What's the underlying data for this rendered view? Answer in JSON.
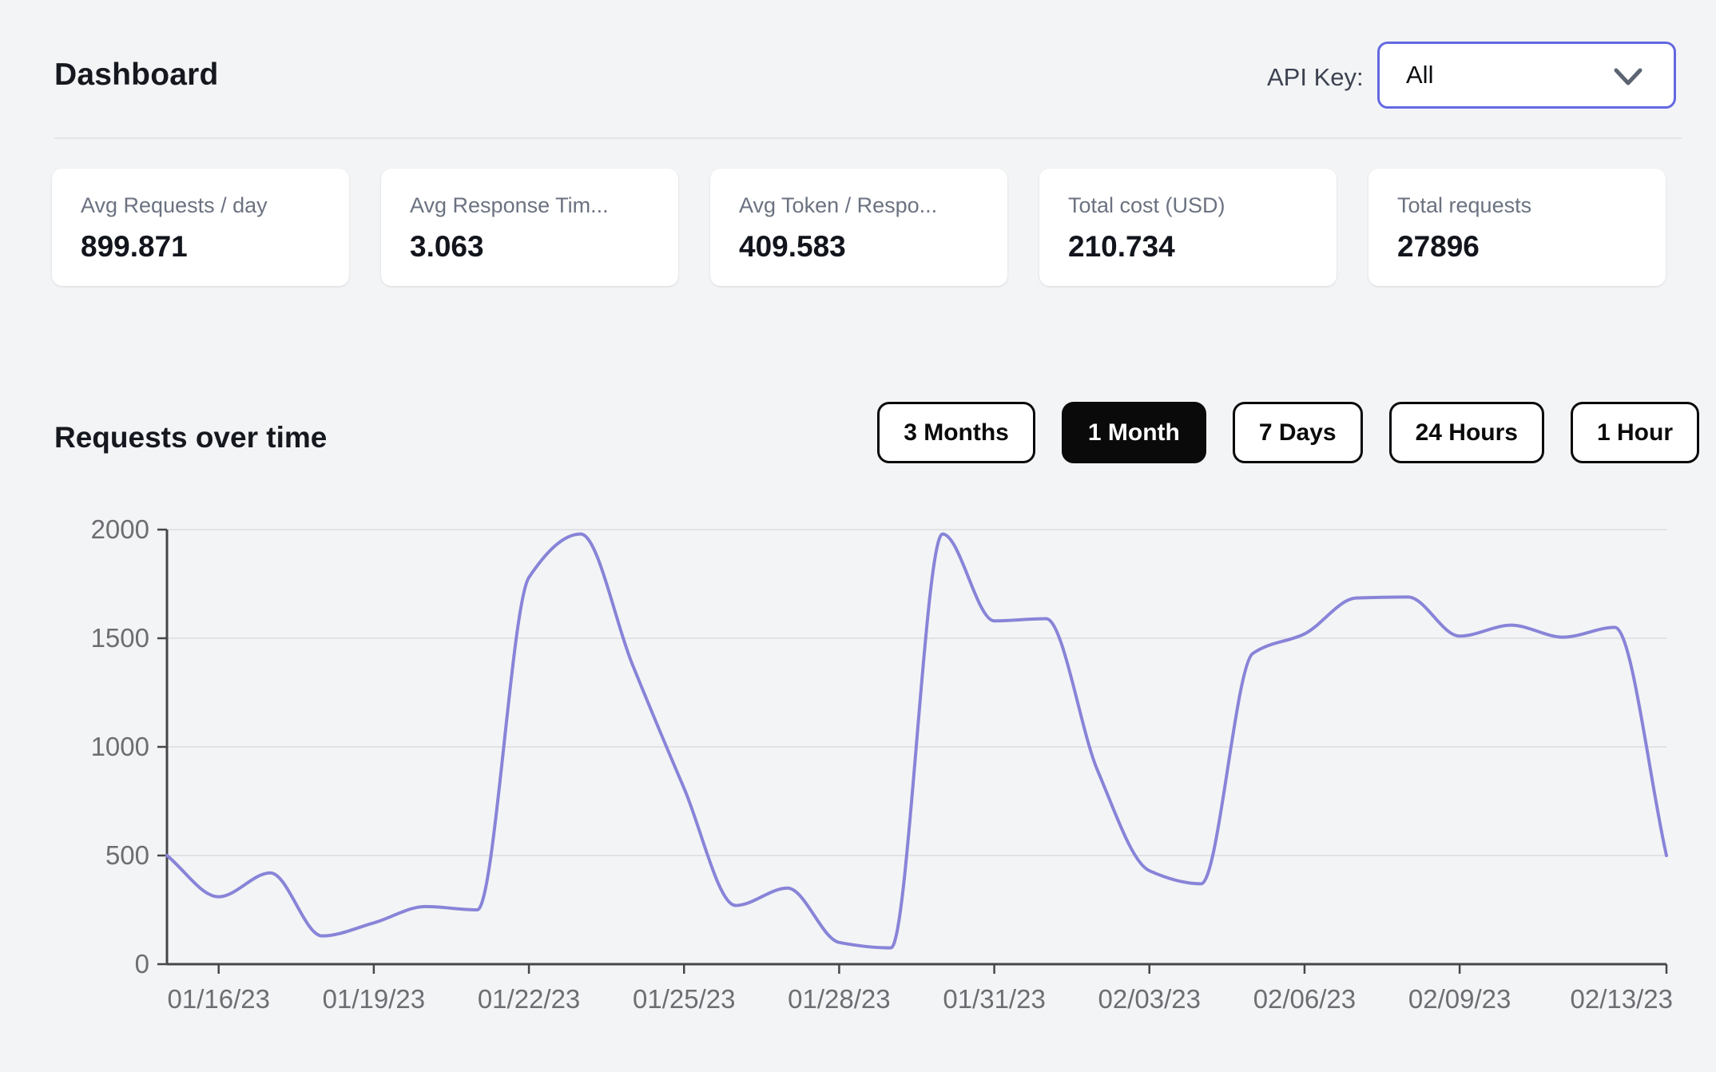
{
  "header": {
    "title": "Dashboard",
    "api_key_label": "API Key:",
    "api_key_value": "All"
  },
  "stats": [
    {
      "label": "Avg Requests / day",
      "value": "899.871"
    },
    {
      "label": "Avg Response Tim...",
      "value": "3.063"
    },
    {
      "label": "Avg Token / Respo...",
      "value": "409.583"
    },
    {
      "label": "Total cost (USD)",
      "value": "210.734"
    },
    {
      "label": "Total requests",
      "value": "27896"
    }
  ],
  "section": {
    "title": "Requests over time"
  },
  "range_buttons": [
    {
      "label": "3 Months",
      "active": false
    },
    {
      "label": "1 Month",
      "active": true
    },
    {
      "label": "7 Days",
      "active": false
    },
    {
      "label": "24 Hours",
      "active": false
    },
    {
      "label": "1 Hour",
      "active": false
    }
  ],
  "colors": {
    "page_background": "#f3f4f6",
    "card_background": "#ffffff",
    "accent_indigo": "#6468e2",
    "active_button": "#0a0a0a",
    "chart_line": "#8884d8",
    "axis_text": "#6d6d72",
    "axis_spine": "#474747",
    "gridline": "#e2e2e7"
  },
  "chart_data": {
    "type": "line",
    "title": "Requests over time",
    "x": [
      "01/15/23",
      "01/16/23",
      "01/17/23",
      "01/18/23",
      "01/19/23",
      "01/20/23",
      "01/21/23",
      "01/22/23",
      "01/23/23",
      "01/24/23",
      "01/25/23",
      "01/26/23",
      "01/27/23",
      "01/28/23",
      "01/29/23",
      "01/30/23",
      "01/31/23",
      "02/01/23",
      "02/02/23",
      "02/03/23",
      "02/04/23",
      "02/05/23",
      "02/06/23",
      "02/07/23",
      "02/08/23",
      "02/09/23",
      "02/10/23",
      "02/11/23",
      "02/12/23",
      "02/13/23"
    ],
    "values": [
      500,
      310,
      420,
      130,
      190,
      265,
      250,
      1780,
      1980,
      1380,
      810,
      270,
      350,
      100,
      75,
      1980,
      1580,
      1590,
      890,
      430,
      370,
      1430,
      1520,
      1685,
      1690,
      1510,
      1560,
      1505,
      1550,
      500
    ],
    "x_tick_indices": [
      1,
      4,
      7,
      10,
      13,
      16,
      19,
      22,
      25,
      29
    ],
    "x_tick_labels": [
      "01/16/23",
      "01/19/23",
      "01/22/23",
      "01/25/23",
      "01/28/23",
      "01/31/23",
      "02/03/23",
      "02/06/23",
      "02/09/23",
      "02/13/23"
    ],
    "y_ticks": [
      0,
      500,
      1000,
      1500,
      2000
    ],
    "ylim": [
      0,
      2000
    ],
    "grid": "horizontal",
    "legend": "none",
    "line_color": "#8884d8"
  }
}
